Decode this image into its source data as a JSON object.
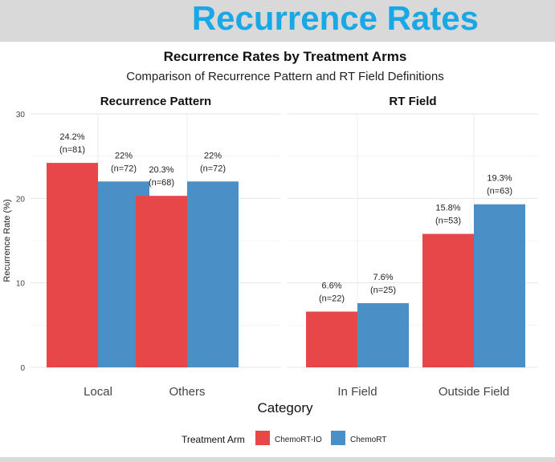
{
  "slide_title": "Recurrence Rates",
  "chart_data": {
    "type": "bar",
    "title": "Recurrence Rates by Treatment Arms",
    "subtitle": "Comparison of Recurrence Pattern and RT Field Definitions",
    "xlabel": "Category",
    "ylabel": "Recurrence Rate (%)",
    "ylim": [
      0,
      30
    ],
    "yticks": [
      "0",
      "10",
      "20",
      "30"
    ],
    "grid": true,
    "legend": {
      "title": "Treatment Arm",
      "placement": "bottom",
      "entries": [
        {
          "name": "ChemoRT-IO",
          "color": "#e8474a"
        },
        {
          "name": "ChemoRT",
          "color": "#4a8fc6"
        }
      ]
    },
    "facets": [
      {
        "title": "Recurrence Pattern",
        "categories": [
          "Local",
          "Others"
        ],
        "series": [
          {
            "name": "ChemoRT-IO",
            "values": [
              24.2,
              20.3
            ],
            "labels": [
              "24.2%",
              "20.3%"
            ],
            "counts": [
              "(n=81)",
              "(n=68)"
            ]
          },
          {
            "name": "ChemoRT",
            "values": [
              22.0,
              22.0
            ],
            "labels": [
              "22%",
              "22%"
            ],
            "counts": [
              "(n=72)",
              "(n=72)"
            ]
          }
        ]
      },
      {
        "title": "RT Field",
        "categories": [
          "In Field",
          "Outside Field"
        ],
        "series": [
          {
            "name": "ChemoRT-IO",
            "values": [
              6.6,
              15.8
            ],
            "labels": [
              "6.6%",
              "15.8%"
            ],
            "counts": [
              "(n=22)",
              "(n=53)"
            ]
          },
          {
            "name": "ChemoRT",
            "values": [
              7.6,
              19.3
            ],
            "labels": [
              "7.6%",
              "19.3%"
            ],
            "counts": [
              "(n=25)",
              "(n=63)"
            ]
          }
        ]
      }
    ]
  }
}
